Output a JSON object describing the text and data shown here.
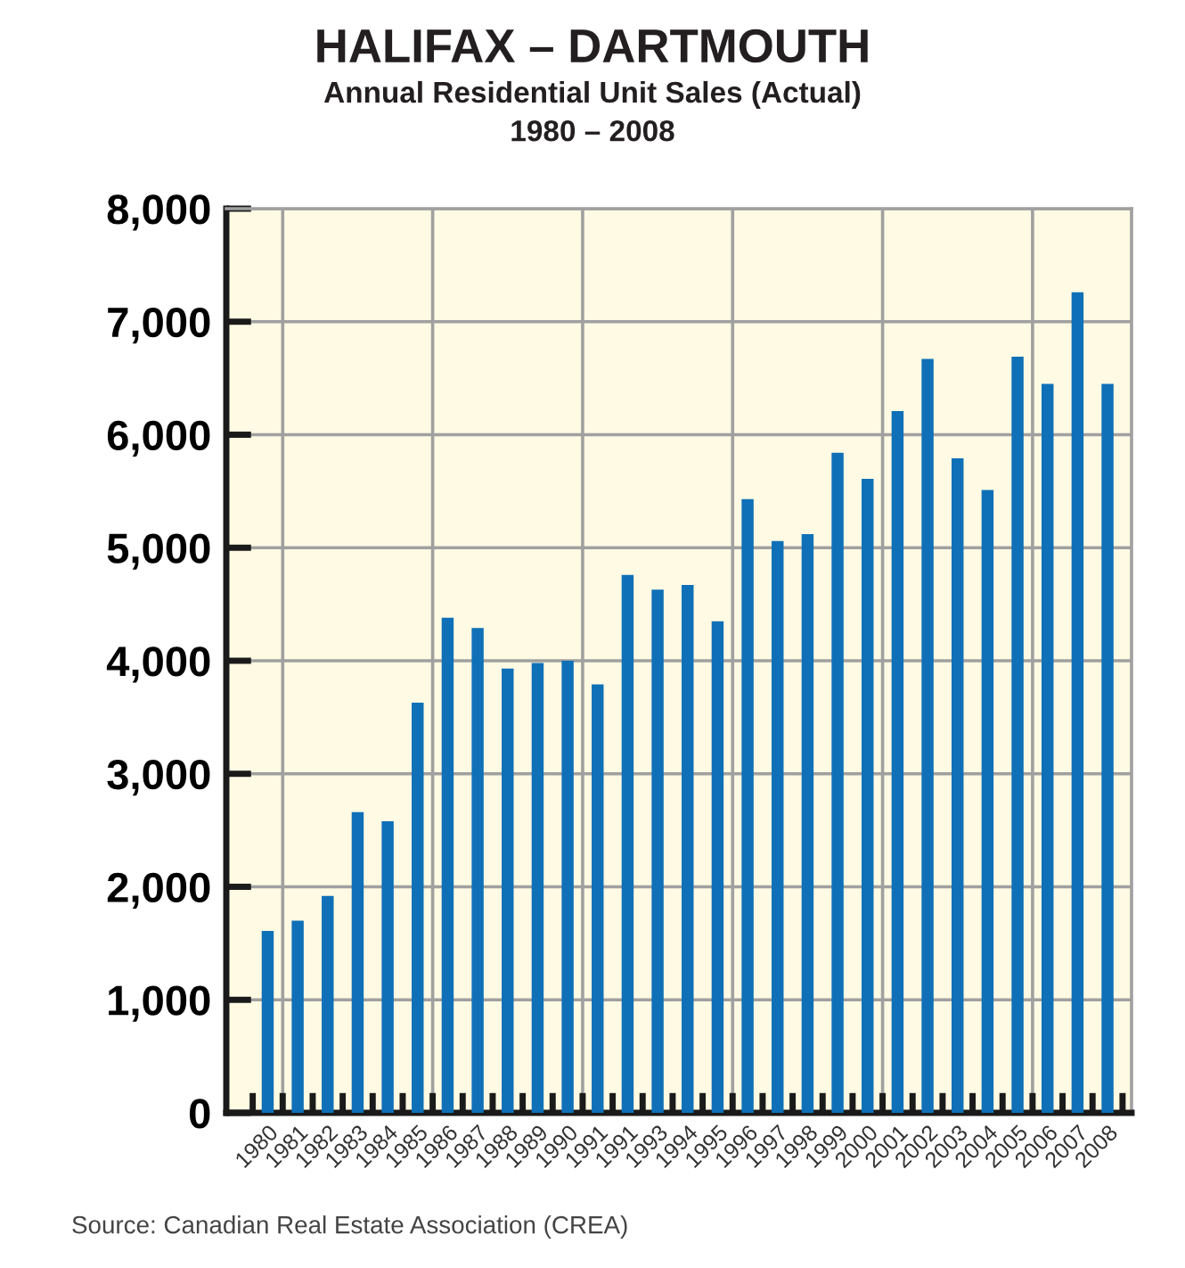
{
  "chart_data": {
    "type": "bar",
    "title": "HALIFAX – DARTMOUTH",
    "subtitle": "Annual Residential Unit Sales (Actual)\n1980 – 2008",
    "categories": [
      "1980",
      "1981",
      "1982",
      "1983",
      "1984",
      "1985",
      "1986",
      "1987",
      "1988",
      "1989",
      "1990",
      "1991",
      "1991",
      "1993",
      "1994",
      "1995",
      "1996",
      "1997",
      "1998",
      "1999",
      "2000",
      "2001",
      "2002",
      "2003",
      "2004",
      "2005",
      "2006",
      "2007",
      "2008"
    ],
    "values": [
      1610,
      1700,
      1920,
      2660,
      2580,
      3630,
      4380,
      4290,
      3930,
      3980,
      4000,
      3790,
      4760,
      4630,
      4670,
      4350,
      5430,
      5060,
      5120,
      5840,
      5610,
      6210,
      6670,
      5790,
      5510,
      6690,
      6450,
      7260,
      6450
    ],
    "color": "#0f70b7",
    "ylim": [
      0,
      8000
    ],
    "yticks": [
      {
        "value": 0,
        "label": "0"
      },
      {
        "value": 1000,
        "label": "1,000"
      },
      {
        "value": 2000,
        "label": "2,000"
      },
      {
        "value": 3000,
        "label": "3,000"
      },
      {
        "value": 4000,
        "label": "4,000"
      },
      {
        "value": 5000,
        "label": "5,000"
      },
      {
        "value": 6000,
        "label": "6,000"
      },
      {
        "value": 7000,
        "label": "7,000"
      },
      {
        "value": 8000,
        "label": "8,000"
      }
    ],
    "grid": true,
    "annotations": [
      "Source: Canadian Real Estate Association (CREA)"
    ]
  }
}
